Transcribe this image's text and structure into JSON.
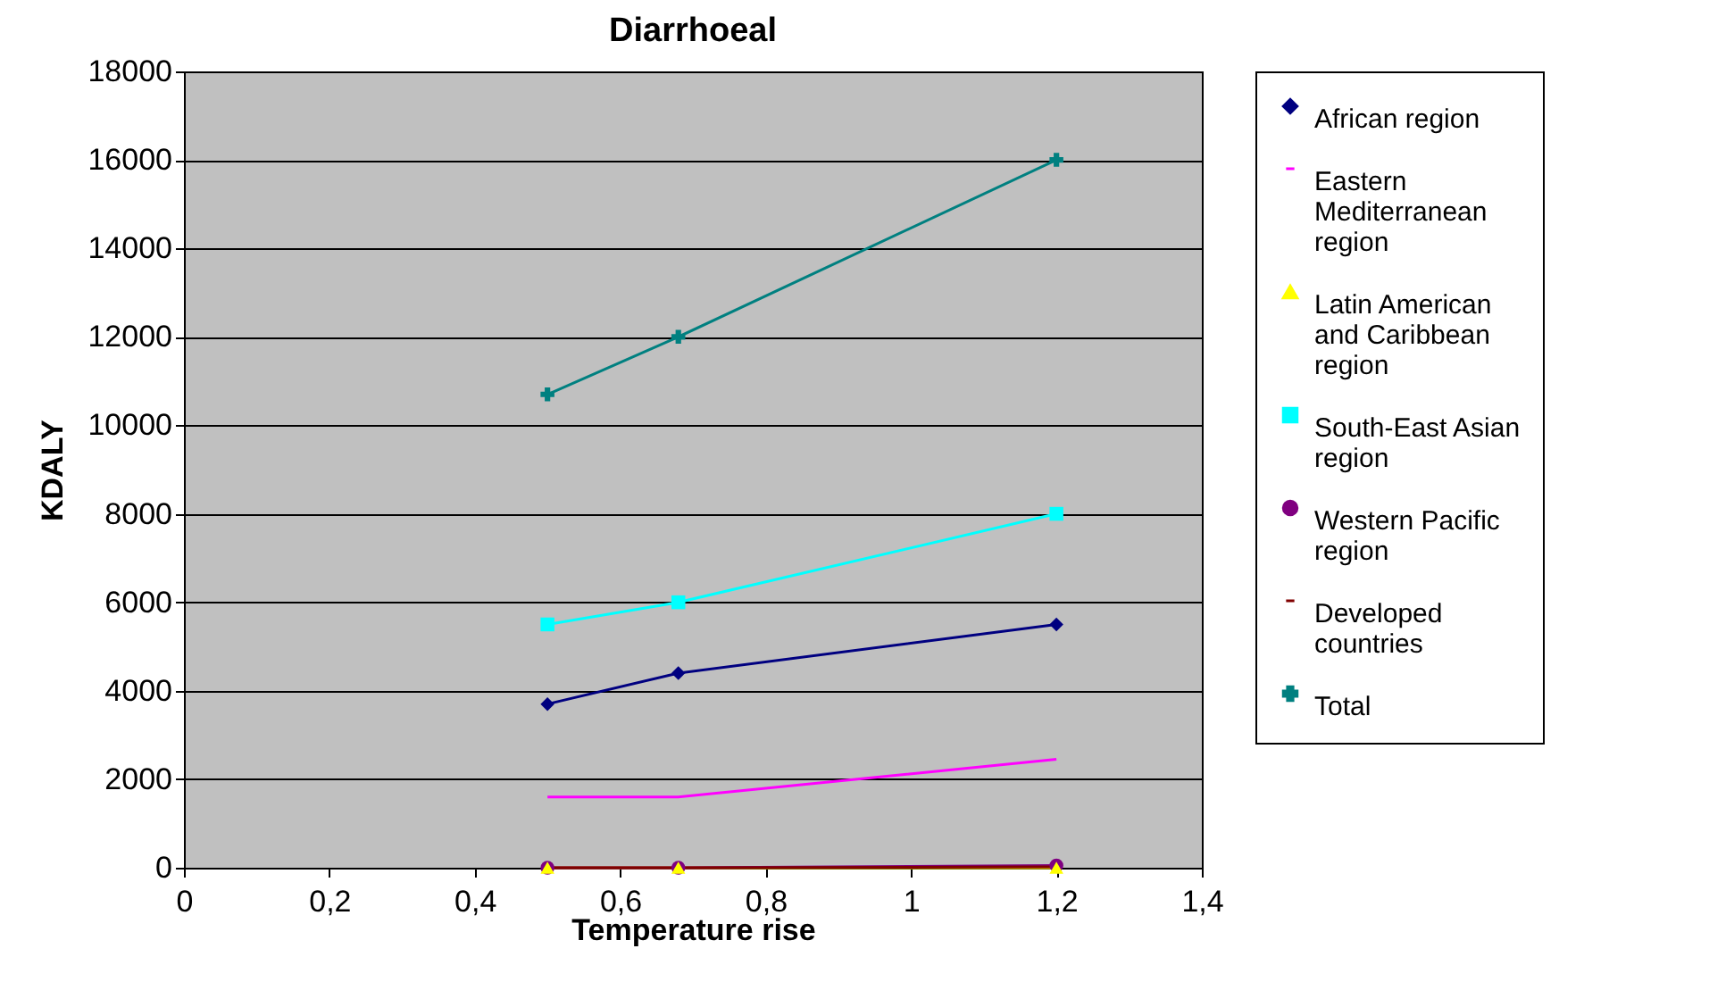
{
  "chart_data": {
    "type": "line",
    "title": "Diarrhoeal",
    "xlabel": "Temperature rise",
    "ylabel": "KDALY",
    "x": [
      0.5,
      0.68,
      1.2
    ],
    "series": [
      {
        "name": "African region",
        "color": "#000080",
        "marker": "diamond",
        "values": [
          3700,
          4400,
          5500
        ]
      },
      {
        "name": "Eastern Mediterranean region",
        "color": "#ff00ff",
        "marker": "none",
        "values": [
          1600,
          1600,
          2450
        ]
      },
      {
        "name": "Latin American and Caribbean region",
        "color": "#ffff00",
        "marker": "triangle",
        "values": [
          0,
          0,
          0
        ]
      },
      {
        "name": "South-East Asian region",
        "color": "#00ffff",
        "marker": "square",
        "values": [
          5500,
          6000,
          8000
        ]
      },
      {
        "name": "Western Pacific region",
        "color": "#800080",
        "marker": "circle",
        "values": [
          0,
          0,
          50
        ]
      },
      {
        "name": "Developed countries",
        "color": "#800000",
        "marker": "none",
        "values": [
          0,
          0,
          20
        ]
      },
      {
        "name": "Total",
        "color": "#008080",
        "marker": "cross",
        "values": [
          10700,
          12000,
          16000
        ]
      }
    ],
    "xlim": [
      0,
      1.4
    ],
    "xticks": [
      0,
      {
        "value": 0.2,
        "label": "0,2"
      },
      {
        "value": 0.4,
        "label": "0,4"
      },
      {
        "value": 0.6,
        "label": "0,6"
      },
      {
        "value": 0.8,
        "label": "0,8"
      },
      1,
      {
        "value": 1.2,
        "label": "1,2"
      },
      {
        "value": 1.4,
        "label": "1,4"
      }
    ],
    "ylim": [
      0,
      18000
    ],
    "yticks": [
      0,
      2000,
      4000,
      6000,
      8000,
      10000,
      12000,
      14000,
      16000,
      18000
    ],
    "grid": "y",
    "legend": "right",
    "line_style": "solid"
  }
}
